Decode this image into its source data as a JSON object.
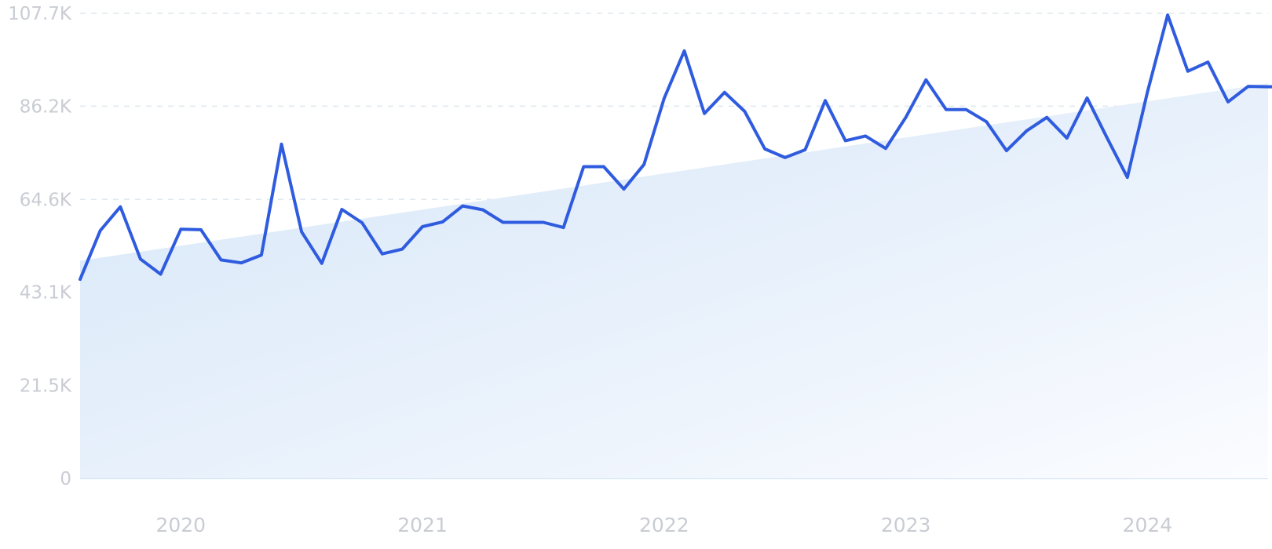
{
  "chart_data": {
    "type": "line",
    "title": "",
    "xlabel": "",
    "ylabel": "",
    "ylim": [
      0,
      107.7
    ],
    "y_ticks": [
      "0",
      "21.5K",
      "43.1K",
      "64.6K",
      "86.2K",
      "107.7K"
    ],
    "y_tick_values": [
      0,
      21.5,
      43.1,
      64.6,
      86.2,
      107.7
    ],
    "x_tick_labels": [
      "2020",
      "2021",
      "2022",
      "2023",
      "2024"
    ],
    "x_tick_values": [
      "2020-01",
      "2021-01",
      "2022-01",
      "2023-01",
      "2024-01"
    ],
    "grid": true,
    "legend": "none",
    "colors": {
      "line": "#2f5bdf",
      "area": "#dceaf9"
    },
    "trend": {
      "start": {
        "x": "2019-08",
        "y": 50.4
      },
      "end": {
        "x": "2024-08",
        "y": 92.2
      }
    },
    "series": [
      {
        "x": [
          "2019-08",
          "2019-09",
          "2019-10",
          "2019-11",
          "2019-12",
          "2020-01",
          "2020-02",
          "2020-03",
          "2020-04",
          "2020-05",
          "2020-06",
          "2020-07",
          "2020-08",
          "2020-09",
          "2020-10",
          "2020-11",
          "2020-12",
          "2021-01",
          "2021-02",
          "2021-03",
          "2021-04",
          "2021-05",
          "2021-06",
          "2021-07",
          "2021-08",
          "2021-09",
          "2021-10",
          "2021-11",
          "2021-12",
          "2022-01",
          "2022-02",
          "2022-03",
          "2022-04",
          "2022-05",
          "2022-06",
          "2022-07",
          "2022-08",
          "2022-09",
          "2022-10",
          "2022-11",
          "2022-12",
          "2023-01",
          "2023-02",
          "2023-03",
          "2023-04",
          "2023-05",
          "2023-06",
          "2023-07",
          "2023-08",
          "2023-09",
          "2023-10",
          "2023-11",
          "2023-12",
          "2024-01",
          "2024-02",
          "2024-03",
          "2024-04",
          "2024-05",
          "2024-06",
          "2024-07",
          "2024-08"
        ],
        "values": [
          46.1,
          57.4,
          62.9,
          50.8,
          47.3,
          57.7,
          57.6,
          50.6,
          49.9,
          51.7,
          77.4,
          57.1,
          49.8,
          62.3,
          59.2,
          52.0,
          53.1,
          58.3,
          59.4,
          63.1,
          62.2,
          59.3,
          59.3,
          59.3,
          58.1,
          72.2,
          72.2,
          67.0,
          72.7,
          88.0,
          99.0,
          84.5,
          89.4,
          85.0,
          76.3,
          74.3,
          76.1,
          87.5,
          78.2,
          79.3,
          76.4,
          83.6,
          92.3,
          85.4,
          85.4,
          82.6,
          75.9,
          80.5,
          83.6,
          78.8,
          88.1,
          78.8,
          69.7,
          89.5,
          107.3,
          94.3,
          96.4,
          87.2,
          90.8,
          90.7,
          90.7
        ]
      }
    ]
  }
}
